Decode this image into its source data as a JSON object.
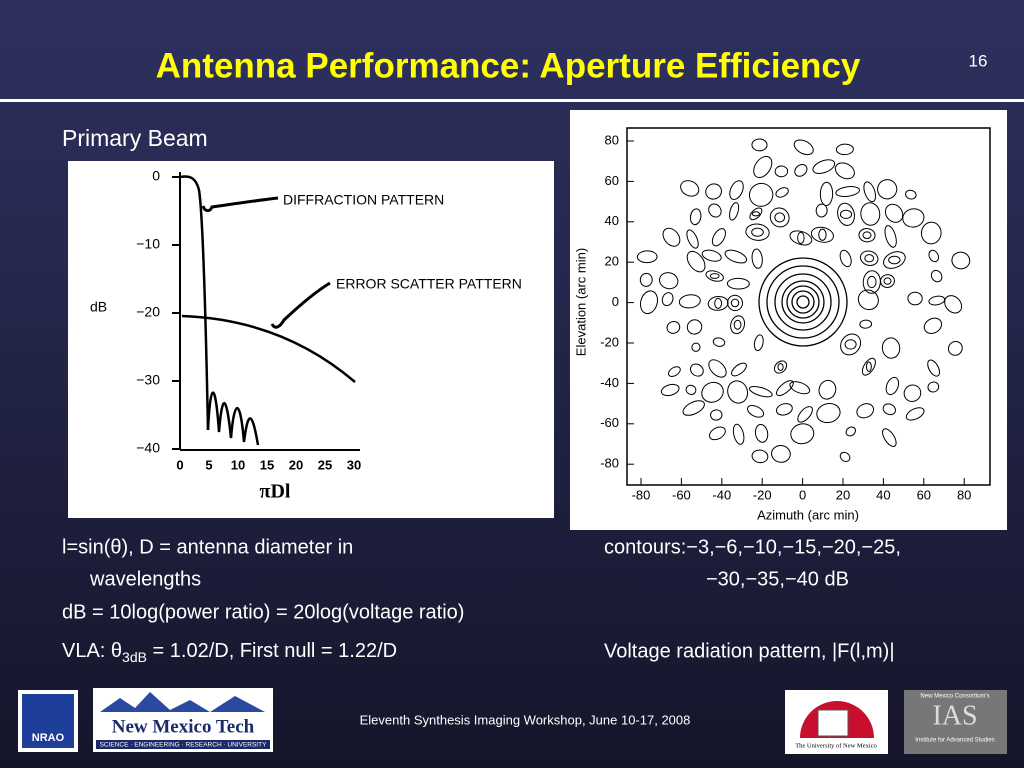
{
  "header": {
    "title": "Antenna Performance: Aperture Efficiency",
    "page_number": "16"
  },
  "left_panel": {
    "heading": "Primary Beam",
    "figure": {
      "y_label": "dB",
      "y_ticks": [
        "0",
        "−10",
        "−20",
        "−30",
        "−40"
      ],
      "x_ticks": [
        "0",
        "5",
        "10",
        "15",
        "20",
        "25",
        "30"
      ],
      "x_label": "πDl",
      "annotations": [
        "DIFFRACTION PATTERN",
        "ERROR SCATTER PATTERN"
      ]
    },
    "notes": [
      [
        "l=sin(θ), D = antenna diameter in",
        "wavelengths"
      ],
      [
        "dB = 10log(power ratio) = 20log(voltage ratio)"
      ],
      [
        "VLA: θ",
        "3dB",
        " = 1.02/D, First null = 1.22/D"
      ]
    ]
  },
  "right_panel": {
    "figure": {
      "y_label": "Elevation (arc min)",
      "x_label": "Azimuth (arc min)",
      "y_ticks": [
        "80",
        "60",
        "40",
        "20",
        "0",
        "-20",
        "-40",
        "-60",
        "-80"
      ],
      "x_ticks": [
        "-80",
        "-60",
        "-40",
        "-20",
        "0",
        "20",
        "40",
        "60",
        "80"
      ]
    },
    "notes": [
      [
        "contours:−3,−6,−10,−15,−20,−25,",
        "−30,−35,−40 dB"
      ],
      [
        "Voltage radiation pattern, |F(l,m)|"
      ]
    ]
  },
  "footer": {
    "text": "Eleventh Synthesis Imaging Workshop, June 10-17, 2008",
    "logos": {
      "nrao": "NRAO",
      "nmt": "New Mexico Tech",
      "nmt_tagline": "SCIENCE · ENGINEERING · RESEARCH · UNIVERSITY",
      "unm": "The University of New Mexico",
      "nmc": "New Mexico Consortium's",
      "ias": "IAS",
      "ias_sub": "Institute for Advanced Studies"
    }
  }
}
